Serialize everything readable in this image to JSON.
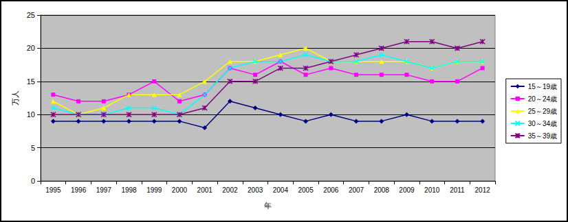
{
  "chart_data": {
    "type": "line",
    "x_label": "年",
    "y_label": "万人",
    "categories": [
      "1995",
      "1996",
      "1997",
      "1998",
      "1999",
      "2000",
      "2001",
      "2002",
      "2003",
      "2004",
      "2005",
      "2006",
      "2007",
      "2008",
      "2009",
      "2010",
      "2011",
      "2012"
    ],
    "series": [
      {
        "name": "15～19歳",
        "color": "#000080",
        "marker": "diamond",
        "values": [
          9,
          9,
          9,
          9,
          9,
          9,
          8,
          12,
          11,
          10,
          9,
          10,
          9,
          9,
          10,
          9,
          9,
          9
        ]
      },
      {
        "name": "20～24歳",
        "color": "#FF00FF",
        "marker": "square",
        "values": [
          13,
          12,
          12,
          13,
          15,
          12,
          13,
          17,
          16,
          18,
          16,
          17,
          16,
          16,
          16,
          15,
          15,
          17
        ]
      },
      {
        "name": "25～29歳",
        "color": "#FFFF00",
        "marker": "triangle",
        "values": [
          12,
          10,
          11,
          13,
          13,
          13,
          15,
          18,
          18,
          19,
          20,
          18,
          18,
          18,
          18,
          17,
          18,
          18
        ]
      },
      {
        "name": "30～34歳",
        "color": "#00FFFF",
        "marker": "x",
        "values": [
          11,
          10,
          10,
          11,
          11,
          10,
          13,
          17,
          18,
          18,
          19,
          18,
          18,
          19,
          18,
          17,
          18,
          18
        ]
      },
      {
        "name": "35～39歳",
        "color": "#800080",
        "marker": "star",
        "values": [
          10,
          10,
          10,
          10,
          10,
          10,
          11,
          15,
          15,
          17,
          17,
          18,
          19,
          20,
          21,
          21,
          20,
          21
        ]
      }
    ],
    "ylim": [
      0,
      25
    ],
    "yticks": [
      0,
      5,
      10,
      15,
      20,
      25
    ],
    "grid": true,
    "legend": "right"
  }
}
